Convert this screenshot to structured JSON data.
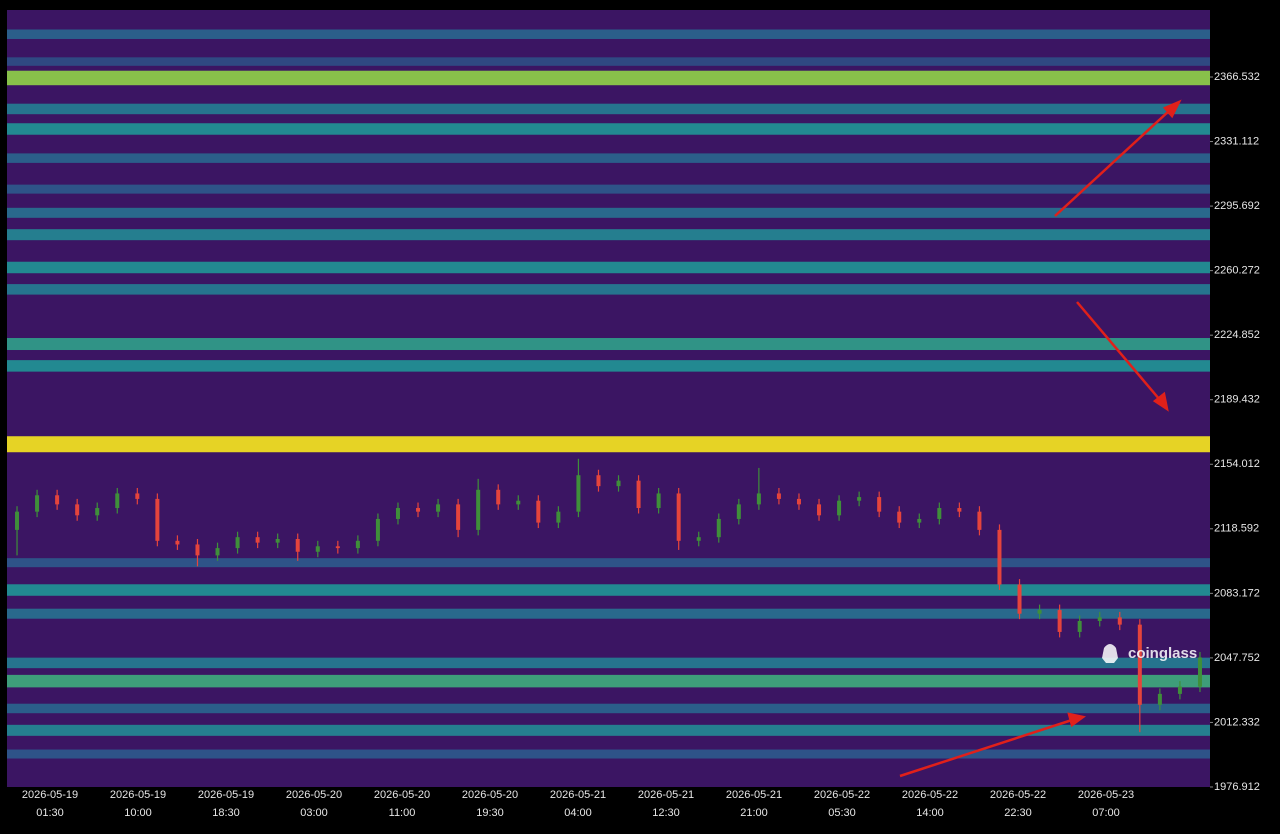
{
  "chart_data": {
    "type": "candlestick",
    "watermark": "coinglass",
    "up_color": "#3f8f3a",
    "down_color": "#e5443c",
    "ylim": [
      1976.9,
      2403.3
    ],
    "yticks": [
      2366.532,
      2331.112,
      2295.692,
      2260.272,
      2224.852,
      2189.432,
      2154.012,
      2118.592,
      2083.172,
      2047.752,
      2012.332,
      1976.912
    ],
    "x_labels": [
      {
        "date": "2026-05-19",
        "time": "01:30"
      },
      {
        "date": "2026-05-19",
        "time": "10:00"
      },
      {
        "date": "2026-05-19",
        "time": "18:30"
      },
      {
        "date": "2026-05-20",
        "time": "03:00"
      },
      {
        "date": "2026-05-20",
        "time": "11:00"
      },
      {
        "date": "2026-05-20",
        "time": "19:30"
      },
      {
        "date": "2026-05-21",
        "time": "04:00"
      },
      {
        "date": "2026-05-21",
        "time": "12:30"
      },
      {
        "date": "2026-05-21",
        "time": "21:00"
      },
      {
        "date": "2026-05-22",
        "time": "05:30"
      },
      {
        "date": "2026-05-22",
        "time": "14:00"
      },
      {
        "date": "2026-05-22",
        "time": "22:30"
      },
      {
        "date": "2026-05-23",
        "time": "07:00"
      }
    ],
    "heatmap": [
      {
        "price": 2390,
        "intensity": 0.35
      },
      {
        "price": 2375,
        "intensity": 0.25
      },
      {
        "price": 2366,
        "intensity": 0.85
      },
      {
        "price": 2349,
        "intensity": 0.45
      },
      {
        "price": 2338,
        "intensity": 0.55
      },
      {
        "price": 2322,
        "intensity": 0.35
      },
      {
        "price": 2305,
        "intensity": 0.3
      },
      {
        "price": 2292,
        "intensity": 0.4
      },
      {
        "price": 2280,
        "intensity": 0.5
      },
      {
        "price": 2262,
        "intensity": 0.55
      },
      {
        "price": 2250,
        "intensity": 0.45
      },
      {
        "price": 2220,
        "intensity": 0.6
      },
      {
        "price": 2208,
        "intensity": 0.55
      },
      {
        "price": 2165,
        "intensity": 1.0
      },
      {
        "price": 2100,
        "intensity": 0.3
      },
      {
        "price": 2085,
        "intensity": 0.55
      },
      {
        "price": 2072,
        "intensity": 0.4
      },
      {
        "price": 2045,
        "intensity": 0.45
      },
      {
        "price": 2035,
        "intensity": 0.65
      },
      {
        "price": 2020,
        "intensity": 0.35
      },
      {
        "price": 2008,
        "intensity": 0.5
      },
      {
        "price": 1995,
        "intensity": 0.3
      }
    ],
    "ohlc": [
      [
        2118,
        2131,
        2104,
        2128
      ],
      [
        2128,
        2140,
        2125,
        2137
      ],
      [
        2137,
        2140,
        2129,
        2132
      ],
      [
        2132,
        2135,
        2123,
        2126
      ],
      [
        2126,
        2133,
        2123,
        2130
      ],
      [
        2130,
        2141,
        2127,
        2138
      ],
      [
        2138,
        2141,
        2132,
        2135
      ],
      [
        2135,
        2138,
        2109,
        2112
      ],
      [
        2112,
        2115,
        2107,
        2110
      ],
      [
        2110,
        2113,
        2098,
        2104
      ],
      [
        2104,
        2111,
        2101,
        2108
      ],
      [
        2108,
        2117,
        2105,
        2114
      ],
      [
        2114,
        2117,
        2108,
        2111
      ],
      [
        2111,
        2116,
        2108,
        2113
      ],
      [
        2113,
        2116,
        2101,
        2106
      ],
      [
        2106,
        2112,
        2103,
        2109
      ],
      [
        2109,
        2112,
        2105,
        2108
      ],
      [
        2108,
        2115,
        2105,
        2112
      ],
      [
        2112,
        2127,
        2109,
        2124
      ],
      [
        2124,
        2133,
        2121,
        2130
      ],
      [
        2130,
        2133,
        2125,
        2128
      ],
      [
        2128,
        2135,
        2125,
        2132
      ],
      [
        2132,
        2135,
        2114,
        2118
      ],
      [
        2118,
        2146,
        2115,
        2140
      ],
      [
        2140,
        2143,
        2129,
        2132
      ],
      [
        2132,
        2137,
        2129,
        2134
      ],
      [
        2134,
        2137,
        2119,
        2122
      ],
      [
        2122,
        2131,
        2119,
        2128
      ],
      [
        2128,
        2157,
        2125,
        2148
      ],
      [
        2148,
        2151,
        2139,
        2142
      ],
      [
        2142,
        2148,
        2139,
        2145
      ],
      [
        2145,
        2148,
        2127,
        2130
      ],
      [
        2130,
        2141,
        2127,
        2138
      ],
      [
        2138,
        2141,
        2107,
        2112
      ],
      [
        2112,
        2117,
        2109,
        2114
      ],
      [
        2114,
        2127,
        2111,
        2124
      ],
      [
        2124,
        2135,
        2121,
        2132
      ],
      [
        2132,
        2152,
        2129,
        2138
      ],
      [
        2138,
        2141,
        2132,
        2135
      ],
      [
        2135,
        2138,
        2129,
        2132
      ],
      [
        2132,
        2135,
        2123,
        2126
      ],
      [
        2126,
        2137,
        2123,
        2134
      ],
      [
        2134,
        2139,
        2131,
        2136
      ],
      [
        2136,
        2139,
        2125,
        2128
      ],
      [
        2128,
        2131,
        2119,
        2122
      ],
      [
        2122,
        2127,
        2119,
        2124
      ],
      [
        2124,
        2133,
        2121,
        2130
      ],
      [
        2130,
        2133,
        2125,
        2128
      ],
      [
        2128,
        2131,
        2115,
        2118
      ],
      [
        2118,
        2121,
        2085,
        2088
      ],
      [
        2088,
        2091,
        2069,
        2072
      ],
      [
        2072,
        2077,
        2069,
        2074
      ],
      [
        2074,
        2077,
        2059,
        2062
      ],
      [
        2062,
        2071,
        2059,
        2068
      ],
      [
        2068,
        2073,
        2065,
        2070
      ],
      [
        2070,
        2073,
        2063,
        2066
      ],
      [
        2066,
        2069,
        2007,
        2022
      ],
      [
        2022,
        2031,
        2019,
        2028
      ],
      [
        2028,
        2035,
        2025,
        2032
      ],
      [
        2032,
        2051,
        2029,
        2048
      ]
    ]
  }
}
